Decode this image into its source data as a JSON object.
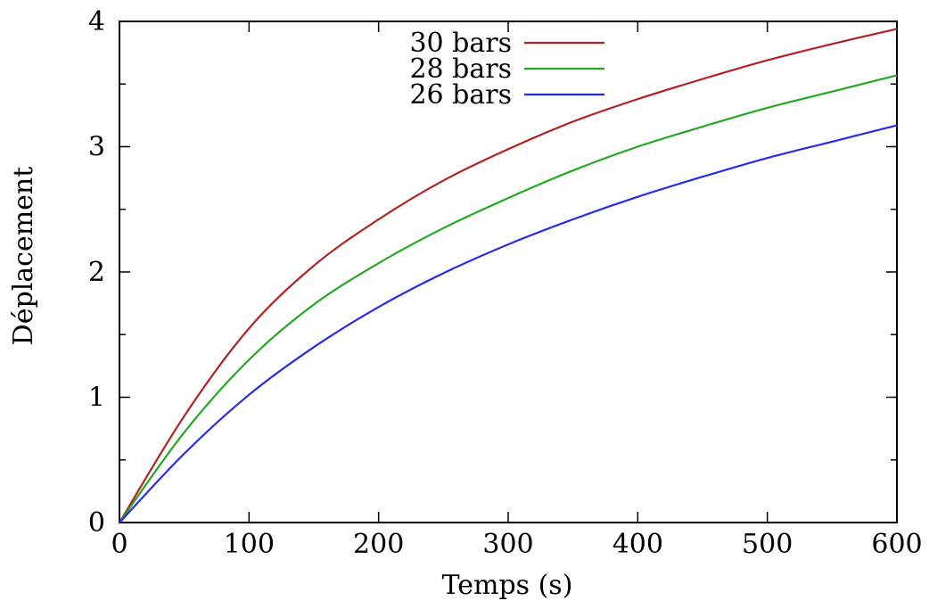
{
  "chart_data": {
    "type": "line",
    "title": "",
    "xlabel": "Temps (s)",
    "ylabel": "Déplacement",
    "xlim": [
      0,
      600
    ],
    "ylim": [
      0,
      4
    ],
    "x_ticks": [
      0,
      100,
      200,
      300,
      400,
      500,
      600
    ],
    "x_tick_labels": [
      "0",
      "100",
      "200",
      "300",
      "400",
      "500",
      "600"
    ],
    "y_ticks": [
      0,
      1,
      2,
      3,
      4
    ],
    "y_tick_labels": [
      "0",
      "1",
      "2",
      "3",
      "4"
    ],
    "y_minor_ticks": [
      0.5,
      1.5,
      2.5,
      3.5
    ],
    "grid": false,
    "legend_position": "top-center",
    "x": [
      0,
      50,
      100,
      150,
      200,
      250,
      300,
      350,
      400,
      450,
      500,
      550,
      600
    ],
    "series": [
      {
        "name": "30 bars",
        "color": "#b22222",
        "values": [
          0,
          0.85,
          1.55,
          2.05,
          2.42,
          2.73,
          2.98,
          3.2,
          3.38,
          3.54,
          3.69,
          3.82,
          3.94
        ]
      },
      {
        "name": "28 bars",
        "color": "#22a822",
        "values": [
          0,
          0.72,
          1.3,
          1.74,
          2.07,
          2.35,
          2.59,
          2.81,
          3.0,
          3.16,
          3.31,
          3.44,
          3.57
        ]
      },
      {
        "name": "26 bars",
        "color": "#2a2aee",
        "values": [
          0,
          0.55,
          1.02,
          1.4,
          1.72,
          1.99,
          2.22,
          2.42,
          2.6,
          2.76,
          2.91,
          3.04,
          3.17
        ]
      }
    ]
  }
}
